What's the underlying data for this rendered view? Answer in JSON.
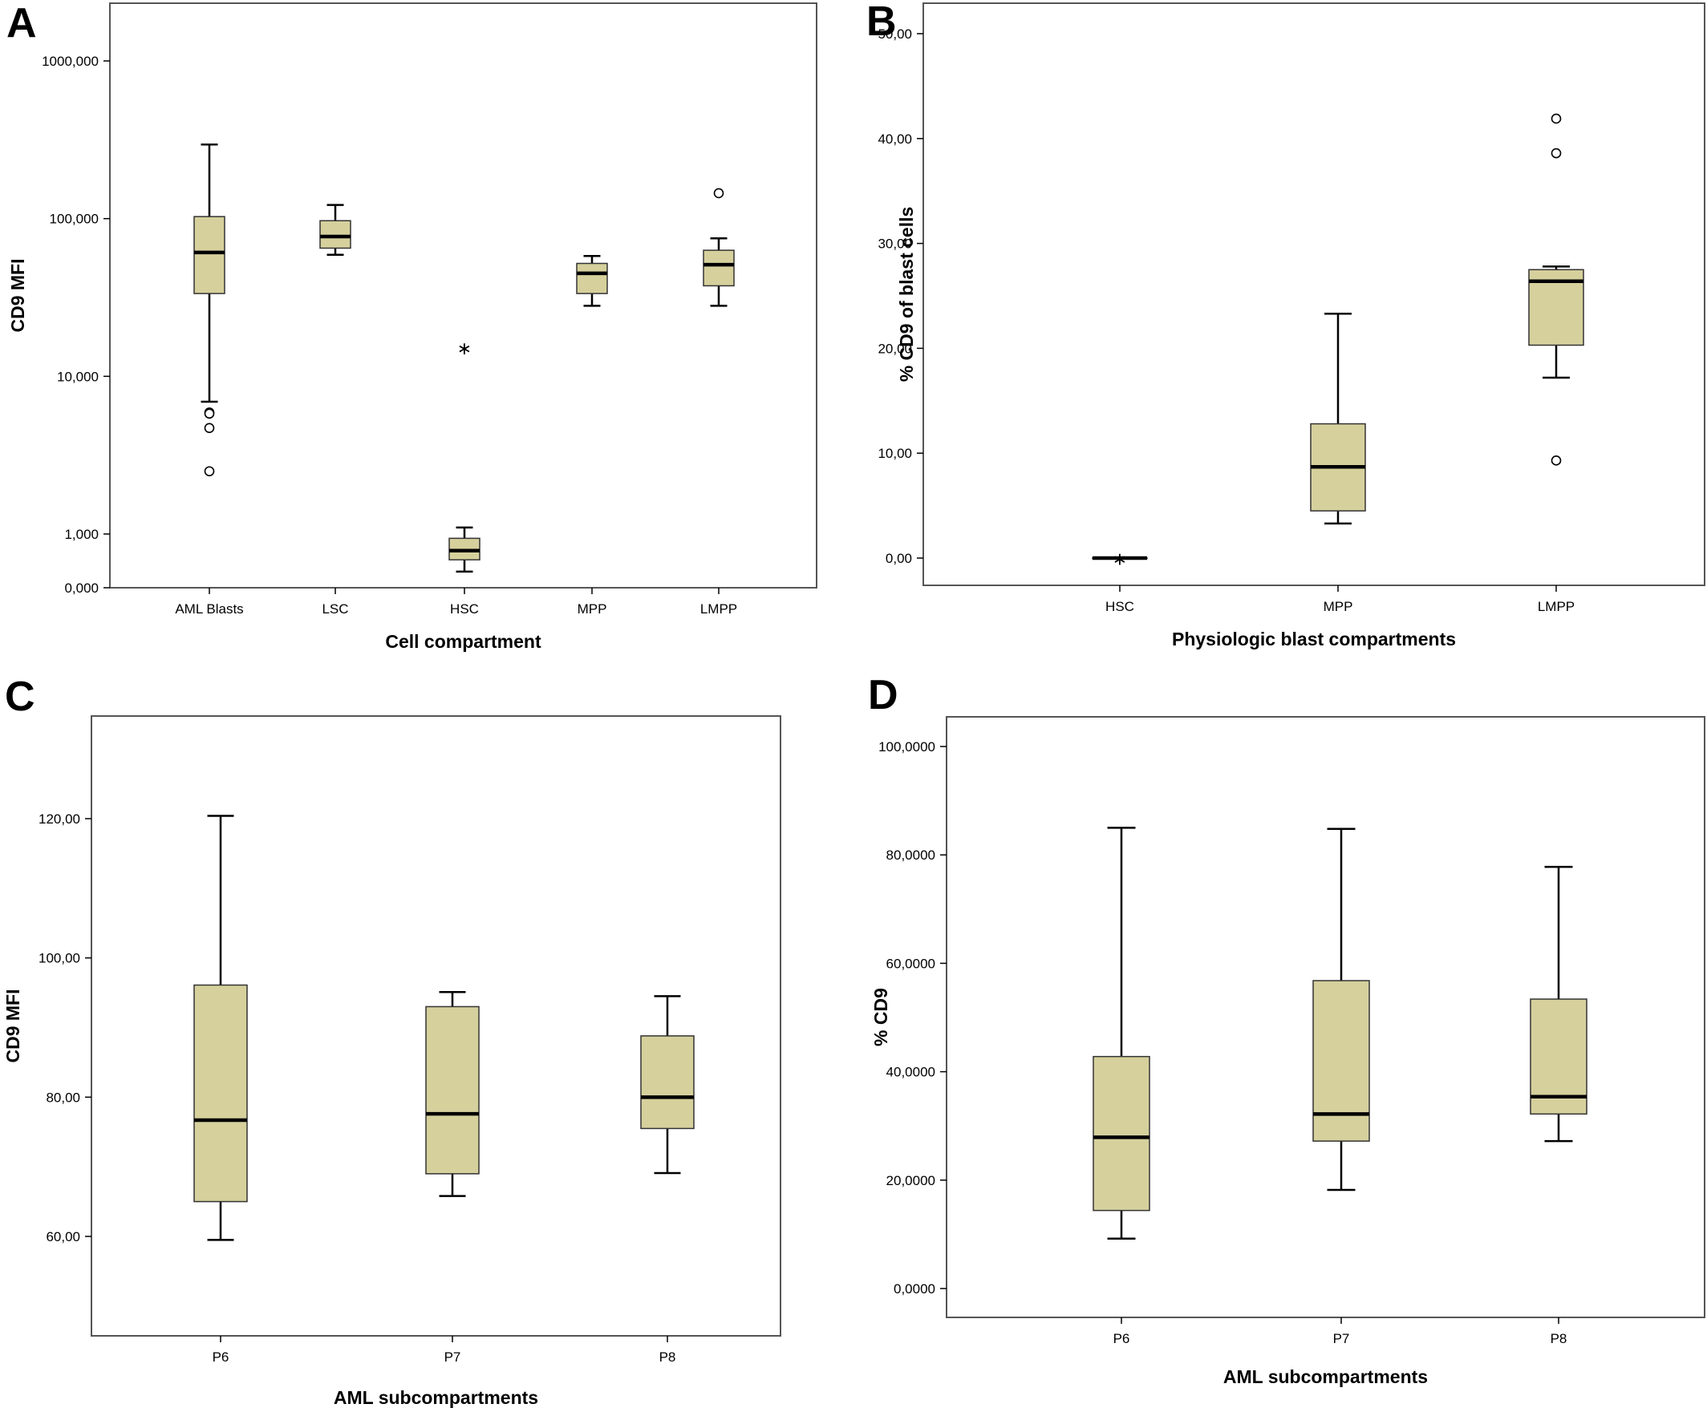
{
  "colors": {
    "box_fill": "#d6d09d",
    "stroke": "#000000",
    "background": "#ffffff"
  },
  "chart_data": [
    {
      "panel": "A",
      "type": "box",
      "xlabel": "Cell compartment",
      "ylabel": "CD9 MFI",
      "yscale": "log",
      "y_ticks": [
        {
          "value": 0,
          "label": "0,000"
        },
        {
          "value": 1000,
          "label": "1,000"
        },
        {
          "value": 10000,
          "label": "10,000"
        },
        {
          "value": 100000,
          "label": "100,000"
        },
        {
          "value": 1000000,
          "label": "1000,000"
        }
      ],
      "categories": [
        "AML Blasts",
        "LSC",
        "HSC",
        "MPP",
        "LMPP"
      ],
      "boxes": [
        {
          "whisker_low": 6900,
          "q1": 33500,
          "median": 61000,
          "q3": 103000,
          "whisker_high": 295000,
          "outliers": [
            5900,
            5800,
            4700,
            2500
          ],
          "extremes": []
        },
        {
          "whisker_low": 59000,
          "q1": 65000,
          "median": 77000,
          "q3": 97000,
          "whisker_high": 122000,
          "outliers": [],
          "extremes": []
        },
        {
          "whisker_low": 300,
          "q1": 520,
          "median": 690,
          "q3": 920,
          "whisker_high": 1100,
          "outliers": [],
          "extremes": [
            15500
          ]
        },
        {
          "whisker_low": 28000,
          "q1": 33500,
          "median": 45000,
          "q3": 52000,
          "whisker_high": 58000,
          "outliers": [],
          "extremes": []
        },
        {
          "whisker_low": 28000,
          "q1": 37500,
          "median": 51000,
          "q3": 63000,
          "whisker_high": 75000,
          "outliers": [
            145000
          ],
          "extremes": []
        }
      ]
    },
    {
      "panel": "B",
      "type": "box",
      "xlabel": "Physiologic blast compartments",
      "ylabel": "% CD9 of blast cells",
      "ylim": [
        -2.6,
        53
      ],
      "y_ticks": [
        {
          "value": 0,
          "label": "0,00"
        },
        {
          "value": 10,
          "label": "10,00"
        },
        {
          "value": 20,
          "label": "20,00"
        },
        {
          "value": 30,
          "label": "30,00"
        },
        {
          "value": 40,
          "label": "40,00"
        },
        {
          "value": 50,
          "label": "50,00"
        }
      ],
      "categories": [
        "HSC",
        "MPP",
        "LMPP"
      ],
      "boxes": [
        {
          "whisker_low": 0,
          "q1": 0,
          "median": 0,
          "q3": 0,
          "whisker_high": 0,
          "outliers": [],
          "extremes": [
            0.1
          ]
        },
        {
          "whisker_low": 3.3,
          "q1": 4.5,
          "median": 8.7,
          "q3": 12.8,
          "whisker_high": 23.3,
          "outliers": [],
          "extremes": []
        },
        {
          "whisker_low": 17.2,
          "q1": 20.3,
          "median": 26.4,
          "q3": 27.5,
          "whisker_high": 27.8,
          "outliers": [
            41.9,
            38.6,
            9.3
          ],
          "extremes": []
        }
      ]
    },
    {
      "panel": "C",
      "type": "box",
      "xlabel": "AML subcompartments",
      "ylabel": "CD9 MFI",
      "ylim": [
        45,
        134
      ],
      "y_ticks": [
        {
          "value": 60,
          "label": "60,00"
        },
        {
          "value": 80,
          "label": "80,00"
        },
        {
          "value": 100,
          "label": "100,00"
        },
        {
          "value": 120,
          "label": "120,00"
        }
      ],
      "categories": [
        "P6",
        "P7",
        "P8"
      ],
      "boxes": [
        {
          "whisker_low": 59.5,
          "q1": 65,
          "median": 76.7,
          "q3": 96.1,
          "whisker_high": 120.4,
          "outliers": [],
          "extremes": []
        },
        {
          "whisker_low": 65.8,
          "q1": 69,
          "median": 77.6,
          "q3": 93,
          "whisker_high": 95.1,
          "outliers": [],
          "extremes": []
        },
        {
          "whisker_low": 69.1,
          "q1": 75.5,
          "median": 80,
          "q3": 88.8,
          "whisker_high": 94.5,
          "outliers": [],
          "extremes": []
        }
      ]
    },
    {
      "panel": "D",
      "type": "box",
      "xlabel": "AML subcompartments",
      "ylabel": "% CD9",
      "ylim": [
        -5.5,
        106
      ],
      "y_ticks": [
        {
          "value": 0,
          "label": "0,0000"
        },
        {
          "value": 20,
          "label": "20,0000"
        },
        {
          "value": 40,
          "label": "40,0000"
        },
        {
          "value": 60,
          "label": "60,0000"
        },
        {
          "value": 80,
          "label": "80,0000"
        },
        {
          "value": 100,
          "label": "100,0000"
        }
      ],
      "categories": [
        "P6",
        "P7",
        "P8"
      ],
      "boxes": [
        {
          "whisker_low": 9.2,
          "q1": 14.4,
          "median": 27.9,
          "q3": 42.8,
          "whisker_high": 85,
          "outliers": [],
          "extremes": []
        },
        {
          "whisker_low": 18.2,
          "q1": 27.2,
          "median": 32.2,
          "q3": 56.8,
          "whisker_high": 84.8,
          "outliers": [],
          "extremes": []
        },
        {
          "whisker_low": 27.2,
          "q1": 32.2,
          "median": 35.4,
          "q3": 53.4,
          "whisker_high": 77.8,
          "outliers": [],
          "extremes": []
        }
      ]
    }
  ]
}
